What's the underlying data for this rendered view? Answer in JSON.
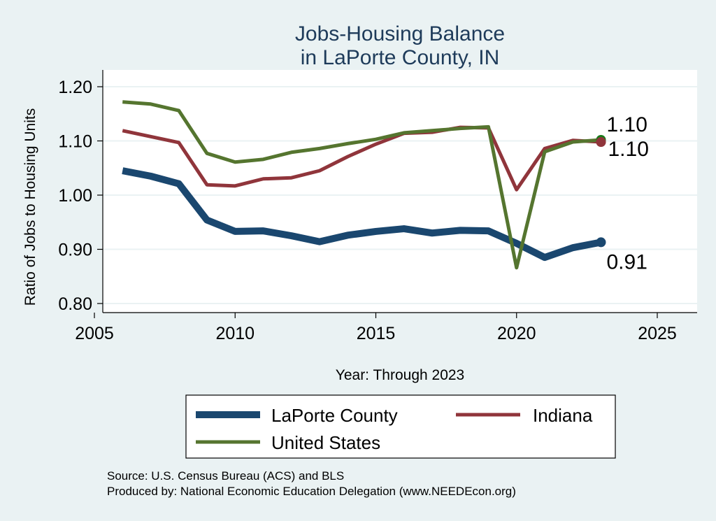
{
  "chart_data": {
    "type": "line",
    "title": [
      "Jobs-Housing Balance",
      "in LaPorte County, IN"
    ],
    "xlabel": "Year: Through 2023",
    "ylabel": "Ratio of Jobs to Housing Units",
    "xlim": [
      2004.7,
      2026.5
    ],
    "ylim": [
      0.78,
      1.23
    ],
    "xticks": [
      2005,
      2010,
      2015,
      2020,
      2025
    ],
    "xtick_labels": [
      "2005",
      "2010",
      "2015",
      "2020",
      "2025"
    ],
    "yticks": [
      0.8,
      0.9,
      1.0,
      1.1,
      1.2
    ],
    "ytick_labels": [
      "0.80",
      "0.90",
      "1.00",
      "1.10",
      "1.20"
    ],
    "grid": true,
    "x": [
      2006,
      2007,
      2008,
      2009,
      2010,
      2011,
      2012,
      2013,
      2014,
      2015,
      2016,
      2017,
      2018,
      2019,
      2020,
      2021,
      2022,
      2023
    ],
    "series": [
      {
        "name": "LaPorte County",
        "color": "#1a476f",
        "width": 10,
        "values": [
          1.045,
          1.035,
          1.021,
          0.954,
          0.933,
          0.934,
          0.925,
          0.914,
          0.926,
          0.933,
          0.938,
          0.93,
          0.935,
          0.934,
          0.911,
          0.885,
          0.903,
          0.913
        ],
        "end_label": "0.91"
      },
      {
        "name": "Indiana",
        "color": "#90353b",
        "width": 5,
        "values": [
          1.119,
          1.108,
          1.097,
          1.019,
          1.017,
          1.03,
          1.032,
          1.045,
          1.071,
          1.094,
          1.114,
          1.116,
          1.125,
          1.124,
          1.01,
          1.086,
          1.101,
          1.098
        ],
        "end_label": "1.10"
      },
      {
        "name": "United States",
        "color": "#55752f",
        "width": 5,
        "values": [
          1.172,
          1.168,
          1.156,
          1.077,
          1.061,
          1.066,
          1.079,
          1.086,
          1.095,
          1.103,
          1.115,
          1.119,
          1.123,
          1.126,
          0.866,
          1.08,
          1.098,
          1.102
        ],
        "end_label": "1.10"
      }
    ],
    "legend": {
      "placement": "bottom",
      "entries": [
        "LaPorte County",
        "Indiana",
        "United States"
      ]
    },
    "notes": [
      "Source: U.S. Census Bureau (ACS) and BLS",
      "Produced by: National Economic Education Delegation (www.NEEDEcon.org)"
    ]
  }
}
